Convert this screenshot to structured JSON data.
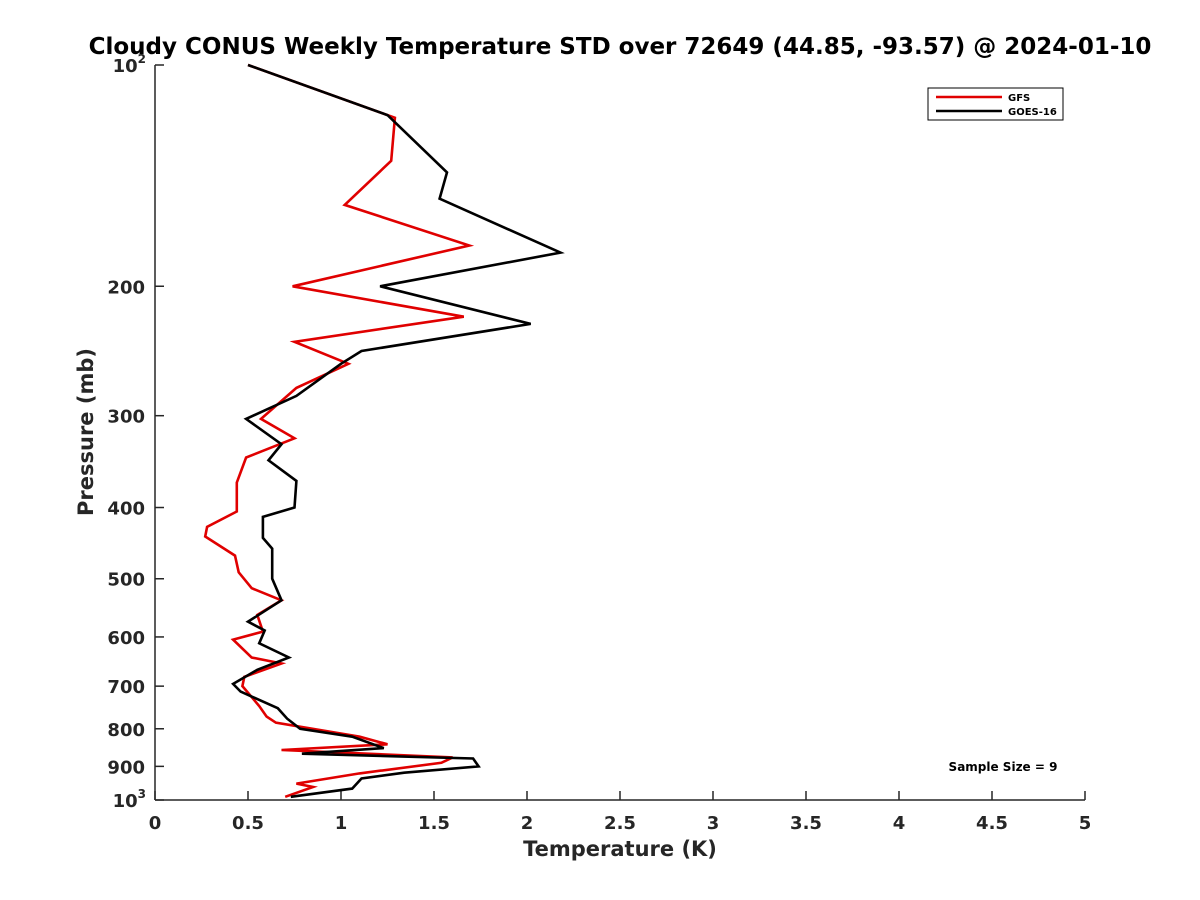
{
  "chart_data": {
    "type": "line",
    "title": "Cloudy CONUS Weekly Temperature STD over 72649 (44.85, -93.57) @ 2024-01-10",
    "xlabel": "Temperature (K)",
    "ylabel": "Pressure (mb)",
    "xlim": [
      0,
      5
    ],
    "ylim": [
      100,
      1000
    ],
    "y_scale": "log",
    "y_reversed": true,
    "x_ticks": [
      "0",
      "0.5",
      "1",
      "1.5",
      "2",
      "2.5",
      "3",
      "3.5",
      "4",
      "4.5",
      "5"
    ],
    "y_ticks": [
      {
        "value": 100,
        "base": "10",
        "exp": "2"
      },
      {
        "value": 200,
        "label": "200"
      },
      {
        "value": 300,
        "label": "300"
      },
      {
        "value": 400,
        "label": "400"
      },
      {
        "value": 500,
        "label": "500"
      },
      {
        "value": 600,
        "label": "600"
      },
      {
        "value": 700,
        "label": "700"
      },
      {
        "value": 800,
        "label": "800"
      },
      {
        "value": 900,
        "label": "900"
      },
      {
        "value": 1000,
        "base": "10",
        "exp": "3"
      }
    ],
    "grid": false,
    "legend_position": "top-right",
    "annotation": "Sample Size = 9",
    "series": [
      {
        "name": "GFS",
        "color": "#e00000",
        "points": [
          [
            0.5,
            100
          ],
          [
            1.29,
            118
          ],
          [
            1.27,
            135
          ],
          [
            1.02,
            155
          ],
          [
            1.69,
            176
          ],
          [
            0.74,
            200
          ],
          [
            1.66,
            220
          ],
          [
            0.75,
            238
          ],
          [
            1.04,
            255
          ],
          [
            0.76,
            275
          ],
          [
            0.57,
            303
          ],
          [
            0.75,
            322
          ],
          [
            0.49,
            342
          ],
          [
            0.44,
            370
          ],
          [
            0.44,
            405
          ],
          [
            0.28,
            425
          ],
          [
            0.27,
            438
          ],
          [
            0.43,
            465
          ],
          [
            0.45,
            490
          ],
          [
            0.52,
            515
          ],
          [
            0.68,
            535
          ],
          [
            0.55,
            560
          ],
          [
            0.58,
            590
          ],
          [
            0.42,
            605
          ],
          [
            0.52,
            640
          ],
          [
            0.68,
            652
          ],
          [
            0.48,
            680
          ],
          [
            0.47,
            700
          ],
          [
            0.56,
            745
          ],
          [
            0.6,
            770
          ],
          [
            0.65,
            785
          ],
          [
            1.1,
            820
          ],
          [
            1.25,
            840
          ],
          [
            0.68,
            855
          ],
          [
            1.6,
            875
          ],
          [
            1.54,
            890
          ],
          [
            1.1,
            920
          ],
          [
            0.76,
            950
          ],
          [
            0.85,
            960
          ],
          [
            0.7,
            990
          ]
        ]
      },
      {
        "name": "GOES-16",
        "color": "#000000",
        "points": [
          [
            0.5,
            100
          ],
          [
            1.25,
            117
          ],
          [
            1.57,
            140
          ],
          [
            1.53,
            152
          ],
          [
            2.18,
            180
          ],
          [
            1.21,
            200
          ],
          [
            2.02,
            225
          ],
          [
            1.11,
            245
          ],
          [
            1.0,
            255
          ],
          [
            0.76,
            282
          ],
          [
            0.49,
            303
          ],
          [
            0.68,
            328
          ],
          [
            0.61,
            345
          ],
          [
            0.76,
            368
          ],
          [
            0.75,
            400
          ],
          [
            0.58,
            412
          ],
          [
            0.58,
            440
          ],
          [
            0.63,
            455
          ],
          [
            0.63,
            500
          ],
          [
            0.68,
            535
          ],
          [
            0.5,
            572
          ],
          [
            0.59,
            588
          ],
          [
            0.56,
            612
          ],
          [
            0.72,
            640
          ],
          [
            0.55,
            665
          ],
          [
            0.42,
            695
          ],
          [
            0.46,
            712
          ],
          [
            0.66,
            750
          ],
          [
            0.71,
            775
          ],
          [
            0.78,
            800
          ],
          [
            1.06,
            820
          ],
          [
            1.23,
            850
          ],
          [
            0.79,
            865
          ],
          [
            1.71,
            878
          ],
          [
            1.74,
            900
          ],
          [
            1.34,
            918
          ],
          [
            1.11,
            935
          ],
          [
            1.06,
            965
          ],
          [
            0.73,
            990
          ]
        ]
      }
    ]
  }
}
